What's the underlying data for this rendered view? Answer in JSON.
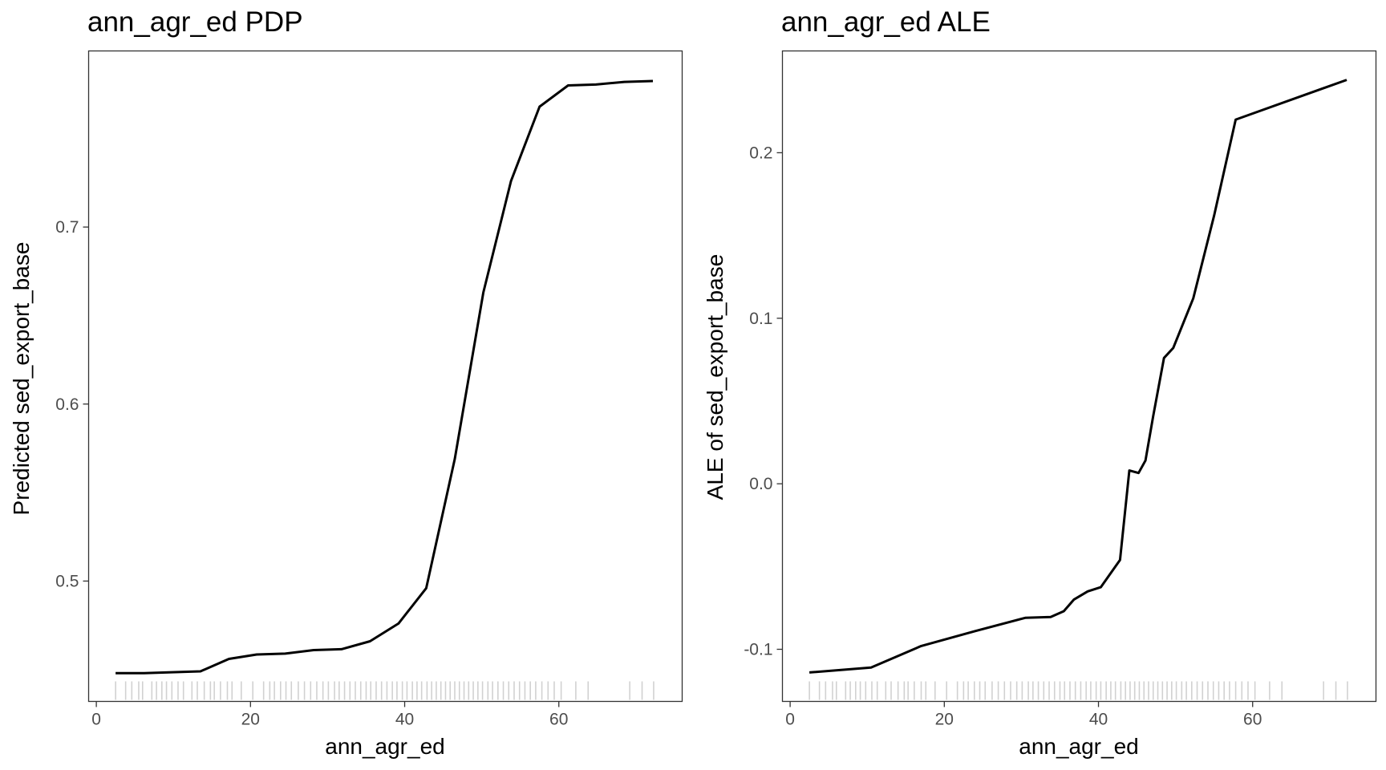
{
  "chart_data": [
    {
      "type": "line",
      "title": "ann_agr_ed PDP",
      "xlabel": "ann_agr_ed",
      "ylabel": "Predicted sed_export_base",
      "xlim": [
        -1,
        76
      ],
      "ylim": [
        0.432,
        0.7995
      ],
      "x_ticks": [
        0,
        20,
        40,
        60
      ],
      "x_tick_labels": [
        "0",
        "20",
        "40",
        "60"
      ],
      "y_ticks": [
        0.5,
        0.6,
        0.7
      ],
      "y_tick_labels": [
        "0.5",
        "0.6",
        "0.7"
      ],
      "grid": false,
      "series": [
        {
          "x": [
            2.5,
            6.2,
            9.8,
            13.5,
            17.2,
            20.8,
            24.5,
            28.2,
            31.8,
            35.5,
            39.2,
            42.8,
            46.5,
            50.2,
            53.8,
            57.5,
            61.2,
            64.8,
            68.5,
            72.2
          ],
          "values": [
            0.448,
            0.448,
            0.4485,
            0.449,
            0.456,
            0.4585,
            0.459,
            0.461,
            0.4615,
            0.466,
            0.476,
            0.496,
            0.569,
            0.663,
            0.726,
            0.768,
            0.78,
            0.7805,
            0.782,
            0.7825
          ]
        }
      ],
      "rug_x": [
        2.5,
        3.8,
        4.6,
        5.5,
        6.0,
        7.2,
        7.8,
        8.5,
        9.1,
        9.8,
        10.6,
        11.3,
        12.4,
        13.1,
        14.0,
        14.8,
        15.3,
        16.1,
        17.0,
        17.6,
        18.8,
        20.3,
        21.7,
        22.5,
        23.1,
        23.9,
        24.6,
        25.3,
        26.2,
        27.0,
        27.8,
        28.6,
        29.4,
        30.1,
        30.9,
        31.5,
        32.2,
        32.9,
        33.6,
        34.3,
        35.0,
        35.6,
        36.3,
        37.0,
        37.7,
        38.4,
        39.0,
        39.7,
        40.3,
        41.0,
        41.6,
        42.2,
        42.9,
        43.5,
        44.1,
        44.7,
        45.3,
        45.9,
        46.5,
        47.1,
        47.7,
        48.3,
        48.9,
        49.5,
        50.1,
        50.8,
        51.4,
        52.1,
        52.8,
        53.5,
        54.2,
        54.9,
        55.6,
        56.3,
        57.0,
        57.8,
        58.6,
        59.4,
        60.3,
        62.2,
        63.8,
        69.2,
        70.8,
        72.3
      ]
    },
    {
      "type": "line",
      "title": "ann_agr_ed ALE",
      "xlabel": "ann_agr_ed",
      "ylabel": "ALE of sed_export_base",
      "xlim": [
        -1,
        76
      ],
      "ylim": [
        -0.1315,
        0.2615
      ],
      "x_ticks": [
        0,
        20,
        40,
        60
      ],
      "x_tick_labels": [
        "0",
        "20",
        "40",
        "60"
      ],
      "y_ticks": [
        -0.1,
        0.0,
        0.1,
        0.2
      ],
      "y_tick_labels": [
        "-0.1",
        "0.0",
        "0.1",
        "0.2"
      ],
      "grid": false,
      "series": [
        {
          "x": [
            2.5,
            10.5,
            17.0,
            24.0,
            30.5,
            33.8,
            35.5,
            36.8,
            38.6,
            40.3,
            42.8,
            44.0,
            45.2,
            46.1,
            47.1,
            48.5,
            49.7,
            52.3,
            55.0,
            57.8,
            72.2
          ],
          "values": [
            -0.114,
            -0.111,
            -0.098,
            -0.089,
            -0.081,
            -0.0805,
            -0.077,
            -0.07,
            -0.065,
            -0.0625,
            -0.046,
            0.008,
            0.0065,
            0.014,
            0.041,
            0.076,
            0.082,
            0.112,
            0.162,
            0.22,
            0.244
          ]
        }
      ],
      "rug_x": [
        2.5,
        3.8,
        4.6,
        5.5,
        6.0,
        7.2,
        7.8,
        8.5,
        9.1,
        9.8,
        10.6,
        11.3,
        12.4,
        13.1,
        14.0,
        14.8,
        15.3,
        16.1,
        17.0,
        17.6,
        18.8,
        20.3,
        21.7,
        22.5,
        23.1,
        23.9,
        24.6,
        25.3,
        26.2,
        27.0,
        27.8,
        28.6,
        29.4,
        30.1,
        30.9,
        31.5,
        32.2,
        32.9,
        33.6,
        34.3,
        35.0,
        35.6,
        36.3,
        37.0,
        37.7,
        38.4,
        39.0,
        39.7,
        40.3,
        41.0,
        41.6,
        42.2,
        42.9,
        43.5,
        44.1,
        44.7,
        45.3,
        45.9,
        46.5,
        47.1,
        47.7,
        48.3,
        48.9,
        49.5,
        50.1,
        50.8,
        51.4,
        52.1,
        52.8,
        53.5,
        54.2,
        54.9,
        55.6,
        56.3,
        57.0,
        57.8,
        58.6,
        59.4,
        60.3,
        62.2,
        63.8,
        69.2,
        70.8,
        72.3
      ]
    }
  ]
}
